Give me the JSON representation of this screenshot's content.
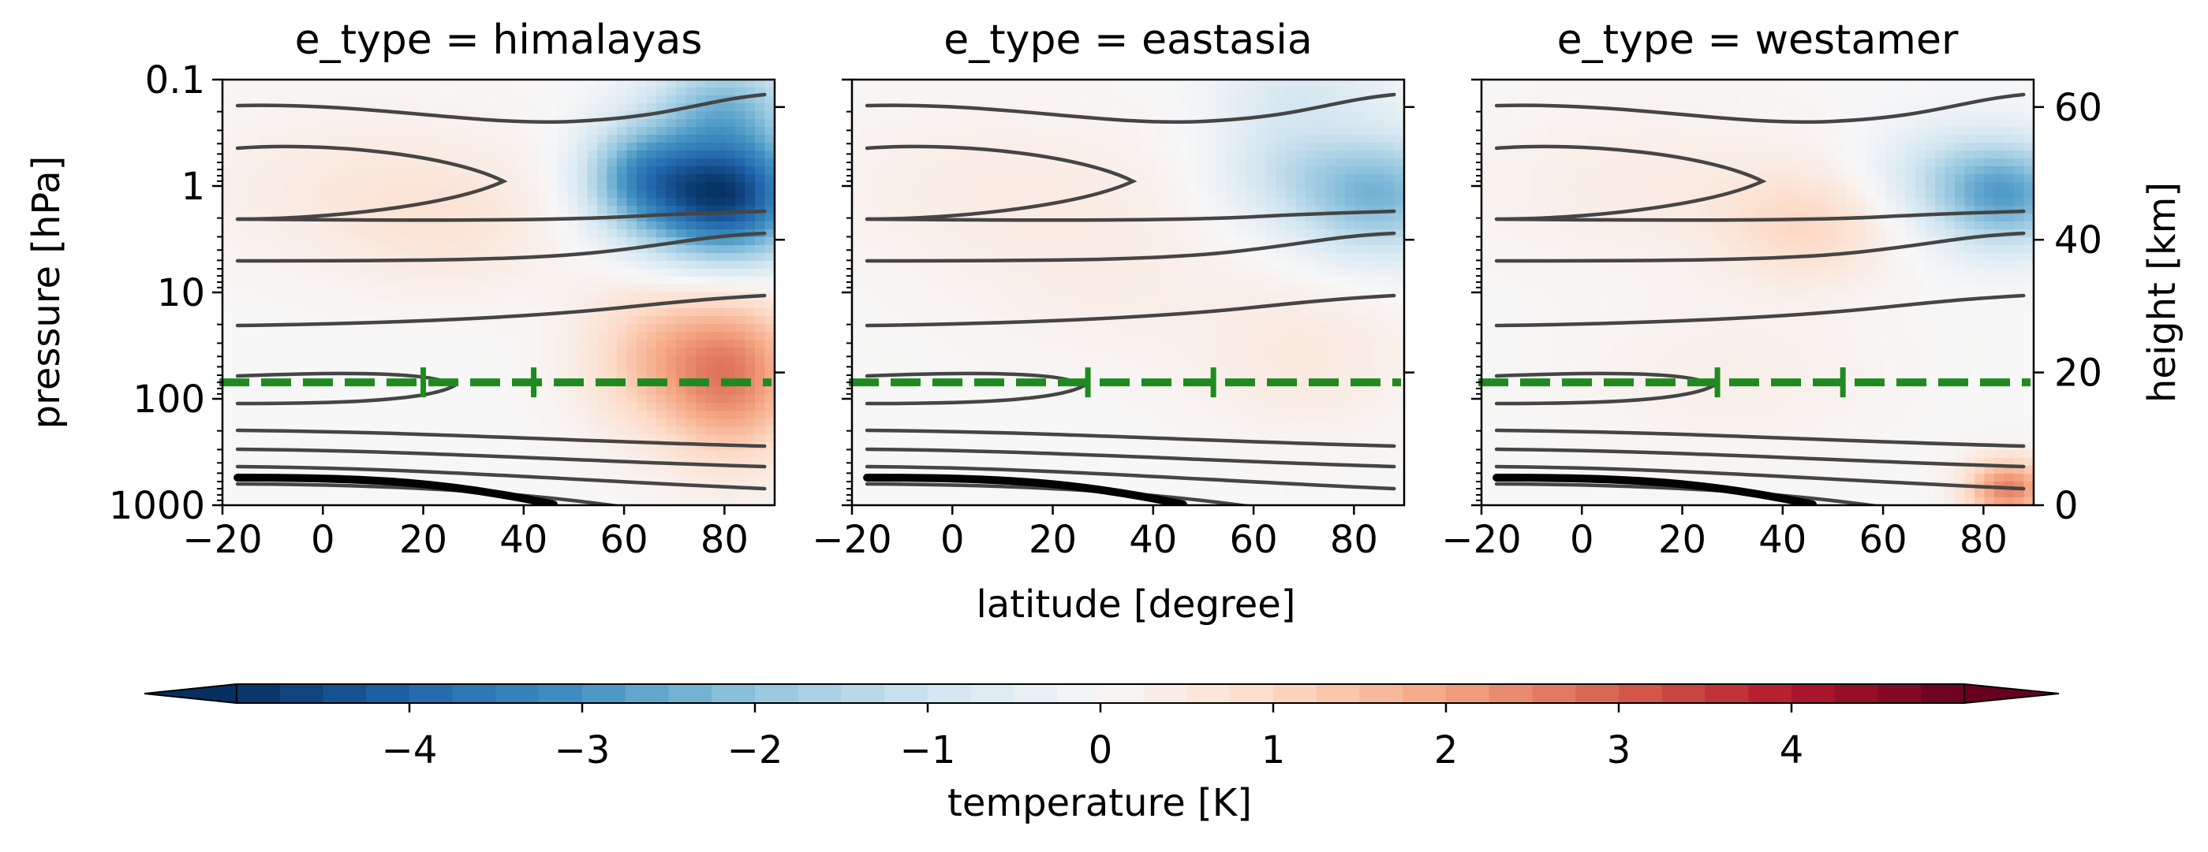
{
  "figure": {
    "xlabel": "latitude [degree]",
    "ylabel_left": "pressure [hPa]",
    "ylabel_right": "height [km]",
    "colorbar_label": "temperature [K]"
  },
  "chart_data": {
    "type": "heatmap",
    "x_axis": {
      "label": "latitude [degree]",
      "lim": [
        -20,
        90
      ],
      "ticks": [
        -20,
        0,
        20,
        40,
        60,
        80
      ],
      "tick_labels": [
        "−20",
        "0",
        "20",
        "40",
        "60",
        "80"
      ]
    },
    "y_axis_left": {
      "label": "pressure [hPa]",
      "scale": "log",
      "lim": [
        1000,
        0.1
      ],
      "ticks": [
        0.1,
        1,
        10,
        100,
        1000
      ],
      "tick_labels": [
        "0.1",
        "1",
        "10",
        "100",
        "1000"
      ]
    },
    "y_axis_right": {
      "label": "height [km]",
      "ticks": [
        0,
        20,
        40,
        60
      ],
      "tick_labels": [
        "0",
        "20",
        "40",
        "60"
      ]
    },
    "colorbar": {
      "label": "temperature [K]",
      "colormap": "RdBu_r",
      "range": [
        -5,
        5
      ],
      "extend": "both",
      "ticks": [
        -4,
        -3,
        -2,
        -1,
        0,
        1,
        2,
        3,
        4
      ],
      "tick_labels": [
        "−4",
        "−3",
        "−2",
        "−1",
        "0",
        "1",
        "2",
        "3",
        "4"
      ]
    },
    "reference_line": {
      "style": "dashed",
      "color": "#1f8a1f",
      "pressure_hPa": 70
    },
    "panels": [
      {
        "title": "e_type = himalayas",
        "tick_marks_lat": [
          20,
          42
        ],
        "anomalies": [
          {
            "lat": 80,
            "p": 1.2,
            "value": -4.8,
            "lat_spread": 12,
            "logp_spread": 0.45
          },
          {
            "lat": 62,
            "p": 0.8,
            "value": -2.0,
            "lat_spread": 8,
            "logp_spread": 0.35
          },
          {
            "lat": 80,
            "p": 0.15,
            "value": -1.6,
            "lat_spread": 10,
            "logp_spread": 0.3
          },
          {
            "lat": 82,
            "p": 60,
            "value": 2.4,
            "lat_spread": 10,
            "logp_spread": 0.55
          },
          {
            "lat": 65,
            "p": 40,
            "value": 1.2,
            "lat_spread": 10,
            "logp_spread": 0.5
          },
          {
            "lat": 10,
            "p": 1,
            "value": 0.5,
            "lat_spread": 25,
            "logp_spread": 0.5
          },
          {
            "lat": 25,
            "p": 3,
            "value": 0.4,
            "lat_spread": 15,
            "logp_spread": 0.4
          }
        ]
      },
      {
        "title": "e_type = eastasia",
        "tick_marks_lat": [
          27,
          52
        ],
        "anomalies": [
          {
            "lat": 85,
            "p": 1.2,
            "value": -2.3,
            "lat_spread": 12,
            "logp_spread": 0.4
          },
          {
            "lat": 65,
            "p": 0.6,
            "value": -0.8,
            "lat_spread": 10,
            "logp_spread": 0.4
          },
          {
            "lat": 70,
            "p": 0.12,
            "value": -0.6,
            "lat_spread": 12,
            "logp_spread": 0.25
          },
          {
            "lat": 70,
            "p": 40,
            "value": 0.5,
            "lat_spread": 15,
            "logp_spread": 0.5
          },
          {
            "lat": 10,
            "p": 1,
            "value": 0.4,
            "lat_spread": 25,
            "logp_spread": 0.5
          },
          {
            "lat": 30,
            "p": 8,
            "value": 0.3,
            "lat_spread": 20,
            "logp_spread": 0.5
          }
        ]
      },
      {
        "title": "e_type = westamer",
        "tick_marks_lat": [
          27,
          52
        ],
        "anomalies": [
          {
            "lat": 85,
            "p": 1.2,
            "value": -2.6,
            "lat_spread": 10,
            "logp_spread": 0.35
          },
          {
            "lat": 70,
            "p": 0.8,
            "value": -0.8,
            "lat_spread": 10,
            "logp_spread": 0.35
          },
          {
            "lat": 45,
            "p": 2.5,
            "value": 0.9,
            "lat_spread": 12,
            "logp_spread": 0.35
          },
          {
            "lat": 15,
            "p": 1,
            "value": 0.4,
            "lat_spread": 25,
            "logp_spread": 0.5
          },
          {
            "lat": 85,
            "p": 700,
            "value": 2.5,
            "lat_spread": 6,
            "logp_spread": 0.2
          },
          {
            "lat": 30,
            "p": 60,
            "value": 0.3,
            "lat_spread": 20,
            "logp_spread": 0.5
          }
        ]
      }
    ]
  }
}
